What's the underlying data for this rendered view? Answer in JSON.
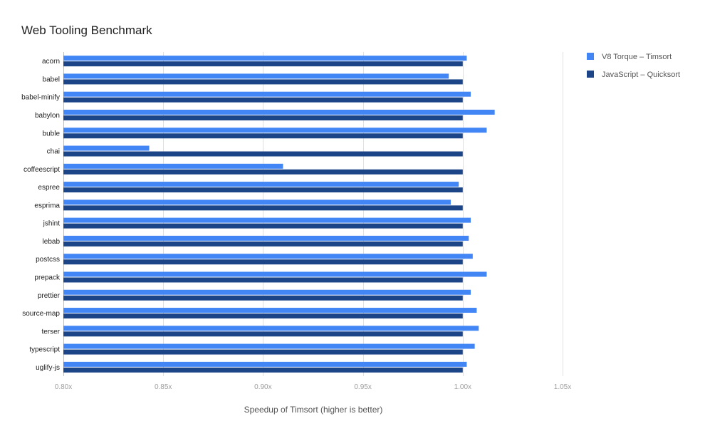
{
  "chart_data": {
    "type": "bar",
    "orientation": "horizontal",
    "title": "Web Tooling Benchmark",
    "xlabel": "Speedup of Timsort (higher is better)",
    "ylabel": "",
    "xlim": [
      0.8,
      1.05
    ],
    "xticks": [
      "0.80x",
      "0.85x",
      "0.90x",
      "0.95x",
      "1.00x",
      "1.05x"
    ],
    "grid": true,
    "legend_position": "right",
    "categories": [
      "acorn",
      "babel",
      "babel-minify",
      "babylon",
      "buble",
      "chai",
      "coffeescript",
      "espree",
      "esprima",
      "jshint",
      "lebab",
      "postcss",
      "prepack",
      "prettier",
      "source-map",
      "terser",
      "typescript",
      "uglify-js"
    ],
    "series": [
      {
        "name": "V8 Torque – Timsort",
        "color": "#4285f4",
        "values": [
          1.002,
          0.993,
          1.004,
          1.016,
          1.012,
          0.843,
          0.91,
          0.998,
          0.994,
          1.004,
          1.003,
          1.005,
          1.012,
          1.004,
          1.007,
          1.008,
          1.006,
          1.002
        ]
      },
      {
        "name": "JavaScript – Quicksort",
        "color": "#1c4587",
        "values": [
          1.0,
          1.0,
          1.0,
          1.0,
          1.0,
          1.0,
          1.0,
          1.0,
          1.0,
          1.0,
          1.0,
          1.0,
          1.0,
          1.0,
          1.0,
          1.0,
          1.0,
          1.0
        ]
      }
    ]
  }
}
